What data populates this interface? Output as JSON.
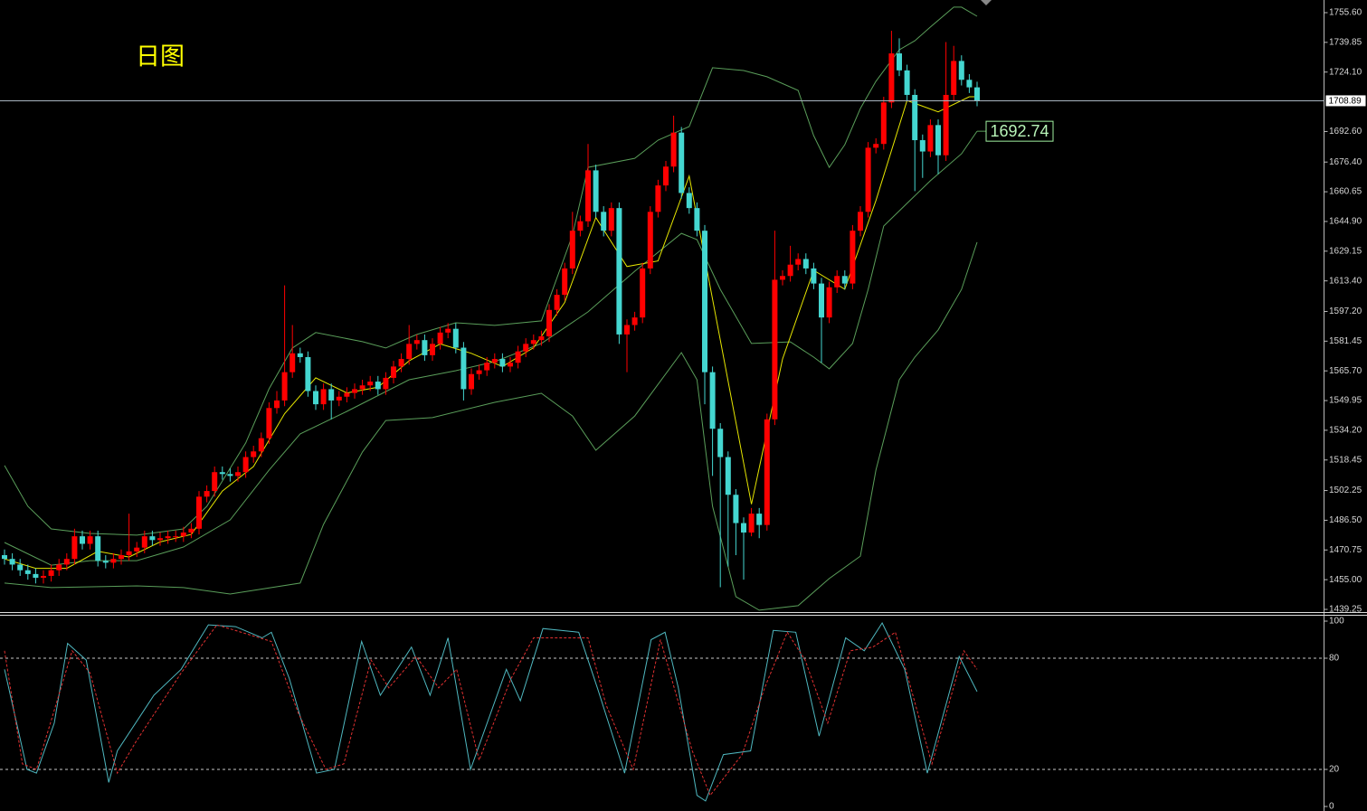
{
  "chart_data": [
    {
      "type": "candlestick",
      "title": "日图",
      "up_color": "#ff0000",
      "down_color": "#44d6d0",
      "ylim": [
        1439.25,
        1755.6
      ],
      "yticks": [
        {
          "value": 1755.6,
          "label": "1755.60"
        },
        {
          "value": 1739.85,
          "label": "1739.85"
        },
        {
          "value": 1724.1,
          "label": "1724.10"
        },
        {
          "value": 1692.6,
          "label": "1692.60"
        },
        {
          "value": 1676.4,
          "label": "1676.40"
        },
        {
          "value": 1660.65,
          "label": "1660.65"
        },
        {
          "value": 1644.9,
          "label": "1644.90"
        },
        {
          "value": 1629.15,
          "label": "1629.15"
        },
        {
          "value": 1613.4,
          "label": "1613.40"
        },
        {
          "value": 1597.2,
          "label": "1597.20"
        },
        {
          "value": 1581.45,
          "label": "1581.45"
        },
        {
          "value": 1565.7,
          "label": "1565.70"
        },
        {
          "value": 1549.95,
          "label": "1549.95"
        },
        {
          "value": 1534.2,
          "label": "1534.20"
        },
        {
          "value": 1518.45,
          "label": "1518.45"
        },
        {
          "value": 1502.25,
          "label": "1502.25"
        },
        {
          "value": 1486.5,
          "label": "1486.50"
        },
        {
          "value": 1470.75,
          "label": "1470.75"
        },
        {
          "value": 1455,
          "label": "1455.00"
        },
        {
          "value": 1439.25,
          "label": "1439.25"
        }
      ],
      "last_price": 1708.89,
      "open": [
        1468,
        1466,
        1463,
        1460,
        1458,
        1456,
        1457,
        1460,
        1463,
        1466,
        1478,
        1474,
        1478,
        1465,
        1464,
        1466,
        1468,
        1470,
        1472,
        1478,
        1476,
        1477,
        1478,
        1478,
        1480,
        1482,
        1499,
        1502,
        1512,
        1511,
        1510,
        1512,
        1520,
        1523,
        1530,
        1546,
        1550,
        1565,
        1575,
        1573,
        1555,
        1548,
        1556,
        1550,
        1552,
        1554,
        1556,
        1558,
        1560,
        1556,
        1562,
        1568,
        1572,
        1580,
        1582,
        1574,
        1580,
        1586,
        1588,
        1578,
        1556,
        1564,
        1566,
        1570,
        1572,
        1568,
        1570,
        1576,
        1580,
        1582,
        1584,
        1598,
        1606,
        1620,
        1640,
        1645,
        1672,
        1650,
        1640,
        1652,
        1585,
        1590,
        1594,
        1620,
        1650,
        1664,
        1674,
        1692,
        1660,
        1652,
        1640,
        1565,
        1535,
        1520,
        1500,
        1485,
        1480,
        1490,
        1484,
        1540,
        1614,
        1616,
        1622,
        1625,
        1620,
        1612,
        1594,
        1610,
        1616,
        1612,
        1640,
        1650,
        1684,
        1686,
        1708,
        1734,
        1725,
        1712,
        1688,
        1682,
        1696,
        1680,
        1712,
        1730,
        1720,
        1716
      ],
      "high": [
        1471,
        1469,
        1466,
        1463,
        1461,
        1460,
        1463,
        1466,
        1469,
        1482,
        1481,
        1481,
        1481,
        1468,
        1469,
        1471,
        1490,
        1475,
        1481,
        1481,
        1480,
        1481,
        1481,
        1483,
        1485,
        1502,
        1505,
        1515,
        1515,
        1514,
        1515,
        1523,
        1526,
        1533,
        1549,
        1555,
        1611,
        1590,
        1578,
        1576,
        1558,
        1559,
        1559,
        1555,
        1557,
        1559,
        1561,
        1563,
        1563,
        1565,
        1571,
        1575,
        1590,
        1585,
        1585,
        1583,
        1589,
        1591,
        1591,
        1581,
        1567,
        1569,
        1573,
        1575,
        1575,
        1573,
        1579,
        1583,
        1585,
        1587,
        1601,
        1609,
        1623,
        1650,
        1648,
        1686,
        1675,
        1653,
        1655,
        1655,
        1593,
        1597,
        1623,
        1653,
        1667,
        1677,
        1701,
        1695,
        1663,
        1655,
        1643,
        1568,
        1538,
        1523,
        1503,
        1488,
        1493,
        1493,
        1543,
        1640,
        1619,
        1632,
        1628,
        1628,
        1623,
        1615,
        1613,
        1619,
        1619,
        1643,
        1653,
        1687,
        1689,
        1711,
        1746,
        1742,
        1728,
        1715,
        1691,
        1699,
        1699,
        1740,
        1738,
        1733,
        1723,
        1719
      ],
      "low": [
        1463,
        1460,
        1457,
        1455,
        1453,
        1453,
        1454,
        1457,
        1460,
        1463,
        1471,
        1471,
        1462,
        1461,
        1461,
        1463,
        1465,
        1467,
        1469,
        1473,
        1473,
        1474,
        1475,
        1475,
        1477,
        1479,
        1496,
        1499,
        1508,
        1507,
        1507,
        1509,
        1517,
        1520,
        1527,
        1543,
        1547,
        1562,
        1570,
        1552,
        1545,
        1545,
        1540,
        1547,
        1549,
        1551,
        1553,
        1555,
        1553,
        1553,
        1559,
        1565,
        1569,
        1577,
        1571,
        1571,
        1577,
        1583,
        1575,
        1550,
        1553,
        1561,
        1563,
        1567,
        1565,
        1565,
        1567,
        1573,
        1577,
        1579,
        1581,
        1595,
        1603,
        1617,
        1637,
        1642,
        1647,
        1637,
        1637,
        1580,
        1565,
        1587,
        1591,
        1617,
        1647,
        1661,
        1671,
        1657,
        1649,
        1637,
        1548,
        1510,
        1451,
        1462,
        1468,
        1455,
        1478,
        1477,
        1481,
        1537,
        1611,
        1613,
        1619,
        1617,
        1609,
        1570,
        1591,
        1607,
        1609,
        1609,
        1637,
        1647,
        1681,
        1683,
        1705,
        1722,
        1709,
        1661,
        1668,
        1679,
        1670,
        1677,
        1709,
        1717,
        1713,
        1706
      ],
      "close": [
        1466,
        1463,
        1460,
        1458,
        1456,
        1457,
        1460,
        1463,
        1466,
        1478,
        1474,
        1478,
        1465,
        1464,
        1466,
        1468,
        1470,
        1472,
        1478,
        1476,
        1477,
        1478,
        1478,
        1480,
        1482,
        1499,
        1502,
        1512,
        1511,
        1510,
        1512,
        1520,
        1523,
        1530,
        1546,
        1550,
        1565,
        1575,
        1573,
        1555,
        1548,
        1556,
        1550,
        1552,
        1554,
        1556,
        1558,
        1560,
        1556,
        1562,
        1568,
        1572,
        1580,
        1582,
        1574,
        1580,
        1586,
        1588,
        1578,
        1556,
        1564,
        1566,
        1570,
        1572,
        1568,
        1570,
        1576,
        1580,
        1582,
        1584,
        1598,
        1606,
        1620,
        1640,
        1645,
        1672,
        1650,
        1640,
        1652,
        1585,
        1590,
        1594,
        1620,
        1650,
        1664,
        1674,
        1692,
        1660,
        1652,
        1640,
        1565,
        1535,
        1520,
        1500,
        1485,
        1480,
        1490,
        1484,
        1540,
        1614,
        1616,
        1622,
        1625,
        1620,
        1612,
        1594,
        1610,
        1616,
        1612,
        1640,
        1650,
        1684,
        1686,
        1708,
        1734,
        1725,
        1712,
        1688,
        1682,
        1696,
        1680,
        1712,
        1730,
        1720,
        1716,
        1708.89
      ],
      "lines": [
        {
          "color": "#5a9e5a",
          "x": [
            0,
            3,
            6,
            11,
            17,
            23,
            26,
            31,
            34,
            37,
            40,
            46,
            49,
            53,
            58,
            63,
            69,
            73,
            75,
            81,
            84,
            88,
            91,
            95,
            98,
            102,
            104,
            106,
            108,
            110,
            112,
            115,
            117,
            119,
            122,
            123,
            125
          ],
          "values": [
            1515.5,
            1493.9,
            1481.9,
            1479.5,
            1478.6,
            1481.9,
            1493.9,
            1527.5,
            1556.2,
            1577.8,
            1586.0,
            1581.2,
            1577.8,
            1585.0,
            1591.2,
            1589.8,
            1592.2,
            1637.7,
            1673.6,
            1678.4,
            1688.0,
            1695.2,
            1726.4,
            1724.9,
            1721.6,
            1714.4,
            1690.4,
            1673.6,
            1685.6,
            1704.8,
            1719.2,
            1735.9,
            1740.7,
            1748.0,
            1758.5,
            1758.5,
            1753.7
          ]
        },
        {
          "color": "#5a9e5a",
          "end_label": true,
          "x": [
            0,
            6,
            11,
            17,
            23,
            29,
            34,
            38,
            44,
            52,
            58,
            63,
            69,
            75,
            81,
            87,
            89,
            92,
            96,
            101,
            104,
            106,
            109,
            111,
            113,
            116,
            119,
            123,
            125
          ],
          "values": [
            1474.7,
            1462.7,
            1465.1,
            1465.1,
            1472.3,
            1486.7,
            1513.1,
            1532.3,
            1544.2,
            1561.0,
            1565.8,
            1570.6,
            1580.2,
            1597.0,
            1618.5,
            1638.6,
            1635.3,
            1608.9,
            1580.2,
            1581.1,
            1573.0,
            1566.8,
            1580.2,
            1608.9,
            1642.5,
            1654.5,
            1666.5,
            1680.8,
            1692.74
          ]
        },
        {
          "color": "#5a9e5a",
          "x": [
            0,
            6,
            17,
            23,
            29,
            38,
            41,
            46,
            49,
            55,
            63,
            69,
            73,
            76,
            81,
            87,
            89,
            91,
            94,
            97,
            102,
            106,
            110,
            112,
            115,
            117,
            120,
            123,
            125
          ],
          "values": [
            1453.2,
            1450.8,
            1451.7,
            1450.8,
            1447.4,
            1453.2,
            1484.3,
            1522.7,
            1539.4,
            1540.9,
            1549.0,
            1553.8,
            1541.8,
            1523.6,
            1541.8,
            1575.4,
            1561.0,
            1493.9,
            1446.0,
            1438.8,
            1441.2,
            1455.6,
            1467.5,
            1513.1,
            1561.0,
            1573.0,
            1587.4,
            1608.9,
            1633.9
          ]
        },
        {
          "color": "#e6e600",
          "x": [
            0,
            4,
            8,
            12,
            16,
            20,
            24,
            28,
            32,
            36,
            40,
            44,
            48,
            52,
            56,
            60,
            64,
            68,
            72,
            76,
            80,
            84,
            88,
            92,
            96,
            100,
            104,
            108,
            112,
            116,
            120,
            124,
            125
          ],
          "values": [
            1466,
            1461,
            1461,
            1470,
            1467,
            1475,
            1479,
            1502,
            1515,
            1543,
            1562,
            1554,
            1557,
            1571,
            1580,
            1575,
            1568,
            1578,
            1602,
            1647,
            1621,
            1624,
            1669,
            1582,
            1495,
            1572,
            1619,
            1609,
            1656,
            1709,
            1703,
            1711,
            1711
          ]
        }
      ]
    },
    {
      "type": "line",
      "ylim": [
        0,
        100
      ],
      "yticks": [
        0,
        20,
        80,
        100
      ],
      "levels": [
        20,
        80
      ],
      "series": [
        {
          "color": "#4fb8c0",
          "x": [
            0,
            2.9,
            4.1,
            6.4,
            8.1,
            10.5,
            13.4,
            14.5,
            19.2,
            22.7,
            26.2,
            29.7,
            33.1,
            34.3,
            36.6,
            40.1,
            42.4,
            45.9,
            48.3,
            52.3,
            54.7,
            57,
            59.9,
            64.5,
            66.3,
            69.2,
            73.8,
            76.2,
            79.7,
            83.1,
            84.9,
            86.6,
            89,
            90.1,
            92.4,
            95.9,
            98.8,
            101.7,
            104.7,
            108.1,
            110.5,
            112.8,
            115.7,
            118.6,
            122.7,
            125
          ],
          "values": [
            74,
            20,
            18,
            45,
            88,
            79,
            13,
            30,
            60,
            74,
            98,
            97,
            91,
            94,
            69,
            18,
            20,
            89,
            60,
            86,
            60,
            91,
            20,
            74,
            57,
            96,
            94,
            64,
            18,
            90,
            94,
            64,
            6,
            3,
            28,
            30,
            95,
            94,
            38,
            91,
            84,
            99,
            74,
            18,
            81,
            62
          ]
        },
        {
          "color": "#e03030",
          "dash": true,
          "x": [
            0,
            2.3,
            4.1,
            8.7,
            11,
            14.5,
            16.9,
            22.7,
            27.3,
            34.3,
            37.8,
            41.3,
            43.6,
            47.1,
            49.4,
            52.9,
            55.8,
            58.1,
            61,
            65.1,
            68,
            75,
            77.3,
            80.8,
            84.3,
            88.4,
            90.7,
            94.8,
            97.7,
            100.6,
            102.9,
            105.8,
            108.7,
            111.6,
            114.5,
            119.2,
            123.3,
            125
          ],
          "values": [
            84,
            23,
            20,
            84,
            72,
            18,
            35,
            72,
            98,
            89,
            50,
            20,
            23,
            79,
            64,
            81,
            64,
            74,
            25,
            69,
            91,
            91,
            55,
            20,
            90,
            30,
            6,
            28,
            64,
            94,
            79,
            45,
            84,
            86,
            94,
            23,
            84,
            74
          ]
        }
      ]
    }
  ]
}
